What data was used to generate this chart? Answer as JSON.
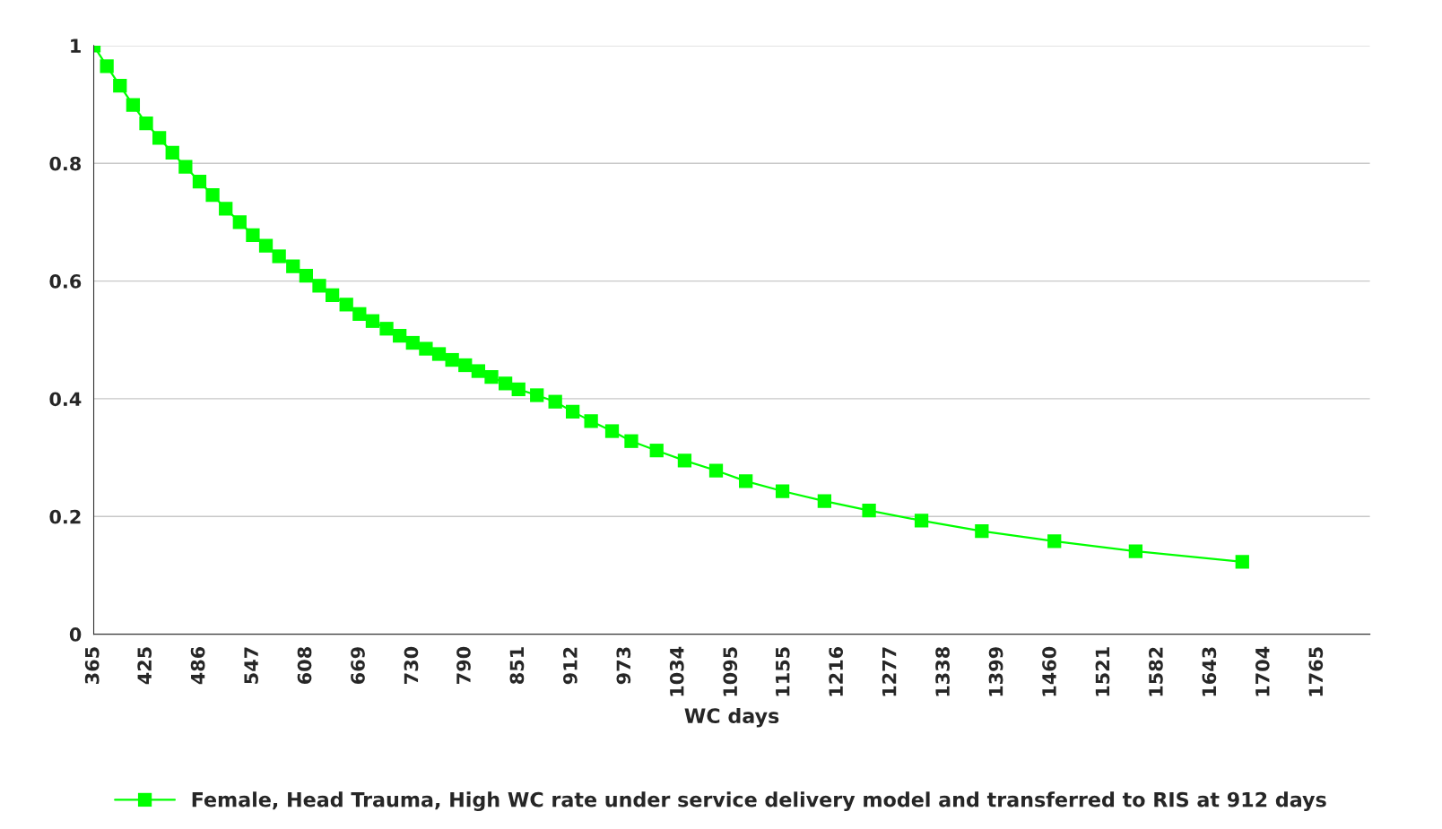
{
  "chart_data": {
    "type": "line",
    "xlabel": "WC days",
    "legend": "bottom",
    "grid": "y",
    "marker": "square",
    "line_style": "solid",
    "xlim": [
      365,
      1825
    ],
    "ylim": [
      0,
      1
    ],
    "xticks": [
      365,
      425,
      486,
      547,
      608,
      669,
      730,
      790,
      851,
      912,
      973,
      1034,
      1095,
      1155,
      1216,
      1277,
      1338,
      1399,
      1460,
      1521,
      1582,
      1643,
      1704,
      1765
    ],
    "yticks": [
      0,
      0.2,
      0.4,
      0.6,
      0.8,
      1
    ],
    "series": [
      {
        "name": "Female, Head Trauma, High WC rate under service delivery model and transferred to RIS at 912 days",
        "color": "#00ff00",
        "x": [
          365,
          380,
          395,
          410,
          425,
          440,
          455,
          470,
          486,
          501,
          516,
          532,
          547,
          562,
          577,
          593,
          608,
          623,
          638,
          654,
          669,
          684,
          700,
          715,
          730,
          745,
          760,
          775,
          790,
          805,
          820,
          836,
          851,
          872,
          893,
          913,
          934,
          958,
          980,
          1009,
          1041,
          1077,
          1111,
          1153,
          1201,
          1252,
          1312,
          1381,
          1464,
          1557,
          1679
        ],
        "values": [
          1.0,
          0.965,
          0.932,
          0.899,
          0.868,
          0.843,
          0.818,
          0.794,
          0.769,
          0.746,
          0.723,
          0.7,
          0.678,
          0.66,
          0.642,
          0.625,
          0.609,
          0.592,
          0.576,
          0.56,
          0.544,
          0.532,
          0.519,
          0.507,
          0.495,
          0.485,
          0.476,
          0.466,
          0.457,
          0.447,
          0.437,
          0.426,
          0.416,
          0.406,
          0.395,
          0.378,
          0.362,
          0.345,
          0.328,
          0.312,
          0.295,
          0.278,
          0.26,
          0.243,
          0.226,
          0.21,
          0.193,
          0.175,
          0.158,
          0.141,
          0.123
        ]
      }
    ]
  }
}
